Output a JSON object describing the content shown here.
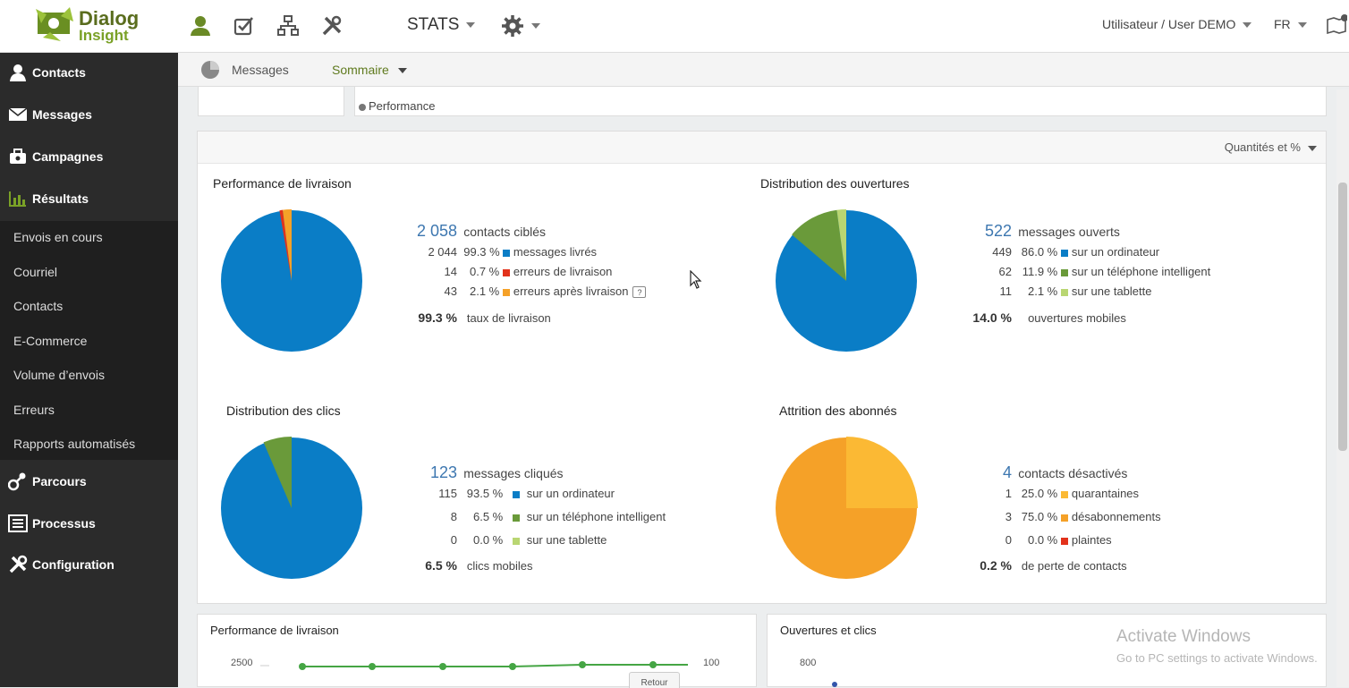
{
  "brand": {
    "name1": "Dialog",
    "name2": "Insight"
  },
  "topbar": {
    "stats_label": "STATS",
    "user_label": "Utilisateur / User DEMO",
    "lang_label": "FR",
    "icons": [
      "user-icon",
      "checklist-icon",
      "org-chart-icon",
      "tools-icon",
      "gear-icon",
      "help-book-icon"
    ]
  },
  "sidebar": {
    "main": [
      {
        "label": "Contacts",
        "icon": "user-icon"
      },
      {
        "label": "Messages",
        "icon": "envelope-icon"
      },
      {
        "label": "Campagnes",
        "icon": "briefcase-icon"
      },
      {
        "label": "Résultats",
        "icon": "bar-chart-icon"
      },
      {
        "label": "Parcours",
        "icon": "path-icon"
      },
      {
        "label": "Processus",
        "icon": "process-icon"
      },
      {
        "label": "Configuration",
        "icon": "tools-icon"
      }
    ],
    "sub": [
      "Envois en cours",
      "Courriel",
      "Contacts",
      "E-Commerce",
      "Volume d’envois",
      "Erreurs",
      "Rapports automatisés"
    ]
  },
  "subnav": {
    "messages": "Messages",
    "sommaire": "Sommaire"
  },
  "top_card": {
    "performance": "Performance"
  },
  "panel": {
    "qty_label": "Quantités et %"
  },
  "colors": {
    "blue": "#0a7dc6",
    "green": "#6a9a3a",
    "light_green": "#b9d672",
    "orange": "#f5a128",
    "red": "#e2321b",
    "yellow": "#fbb934"
  },
  "sections": {
    "livraison": {
      "title": "Performance de livraison",
      "total": "2 058",
      "total_label": "contacts ciblés",
      "rows": [
        {
          "n": "2 044",
          "pct": "99.3 %",
          "label": "messages livrés",
          "color": "#0a7dc6"
        },
        {
          "n": "14",
          "pct": "0.7 %",
          "label": "erreurs de livraison",
          "color": "#e2321b"
        },
        {
          "n": "43",
          "pct": "2.1 %",
          "label": "erreurs après livraison",
          "color": "#f5a128"
        }
      ],
      "rate": "99.3 %",
      "rate_label": "taux de livraison"
    },
    "ouvertures": {
      "title": "Distribution des ouvertures",
      "total": "522",
      "total_label": "messages ouverts",
      "rows": [
        {
          "n": "449",
          "pct": "86.0 %",
          "label": "sur un ordinateur",
          "color": "#0a7dc6"
        },
        {
          "n": "62",
          "pct": "11.9 %",
          "label": "sur un téléphone intelligent",
          "color": "#6a9a3a"
        },
        {
          "n": "11",
          "pct": "2.1 %",
          "label": "sur une tablette",
          "color": "#b9d672"
        }
      ],
      "rate": "14.0 %",
      "rate_label": "ouvertures mobiles"
    },
    "clics": {
      "title": "Distribution des clics",
      "total": "123",
      "total_label": "messages cliqués",
      "rows": [
        {
          "n": "115",
          "pct": "93.5 %",
          "label": "sur un ordinateur",
          "color": "#0a7dc6"
        },
        {
          "n": "8",
          "pct": "6.5 %",
          "label": "sur un téléphone intelligent",
          "color": "#6a9a3a"
        },
        {
          "n": "0",
          "pct": "0.0 %",
          "label": "sur une tablette",
          "color": "#b9d672"
        }
      ],
      "rate": "6.5 %",
      "rate_label": "clics mobiles"
    },
    "attrition": {
      "title": "Attrition des abonnés",
      "total": "4",
      "total_label": "contacts désactivés",
      "rows": [
        {
          "n": "1",
          "pct": "25.0 %",
          "label": "quarantaines",
          "color": "#fbb934"
        },
        {
          "n": "3",
          "pct": "75.0 %",
          "label": "désabonnements",
          "color": "#f5a128"
        },
        {
          "n": "0",
          "pct": "0.0 %",
          "label": "plaintes",
          "color": "#e2321b"
        }
      ],
      "rate": "0.2 %",
      "rate_label": "de perte de contacts"
    }
  },
  "bottom": {
    "left_title": "Performance de livraison",
    "left_tick_left": "2500",
    "left_tick_right": "100",
    "left_button": "Retour",
    "right_title": "Ouvertures et clics",
    "right_tick": "800"
  },
  "watermark": {
    "line1": "Activate Windows",
    "line2": "Go to PC settings to activate Windows."
  }
}
